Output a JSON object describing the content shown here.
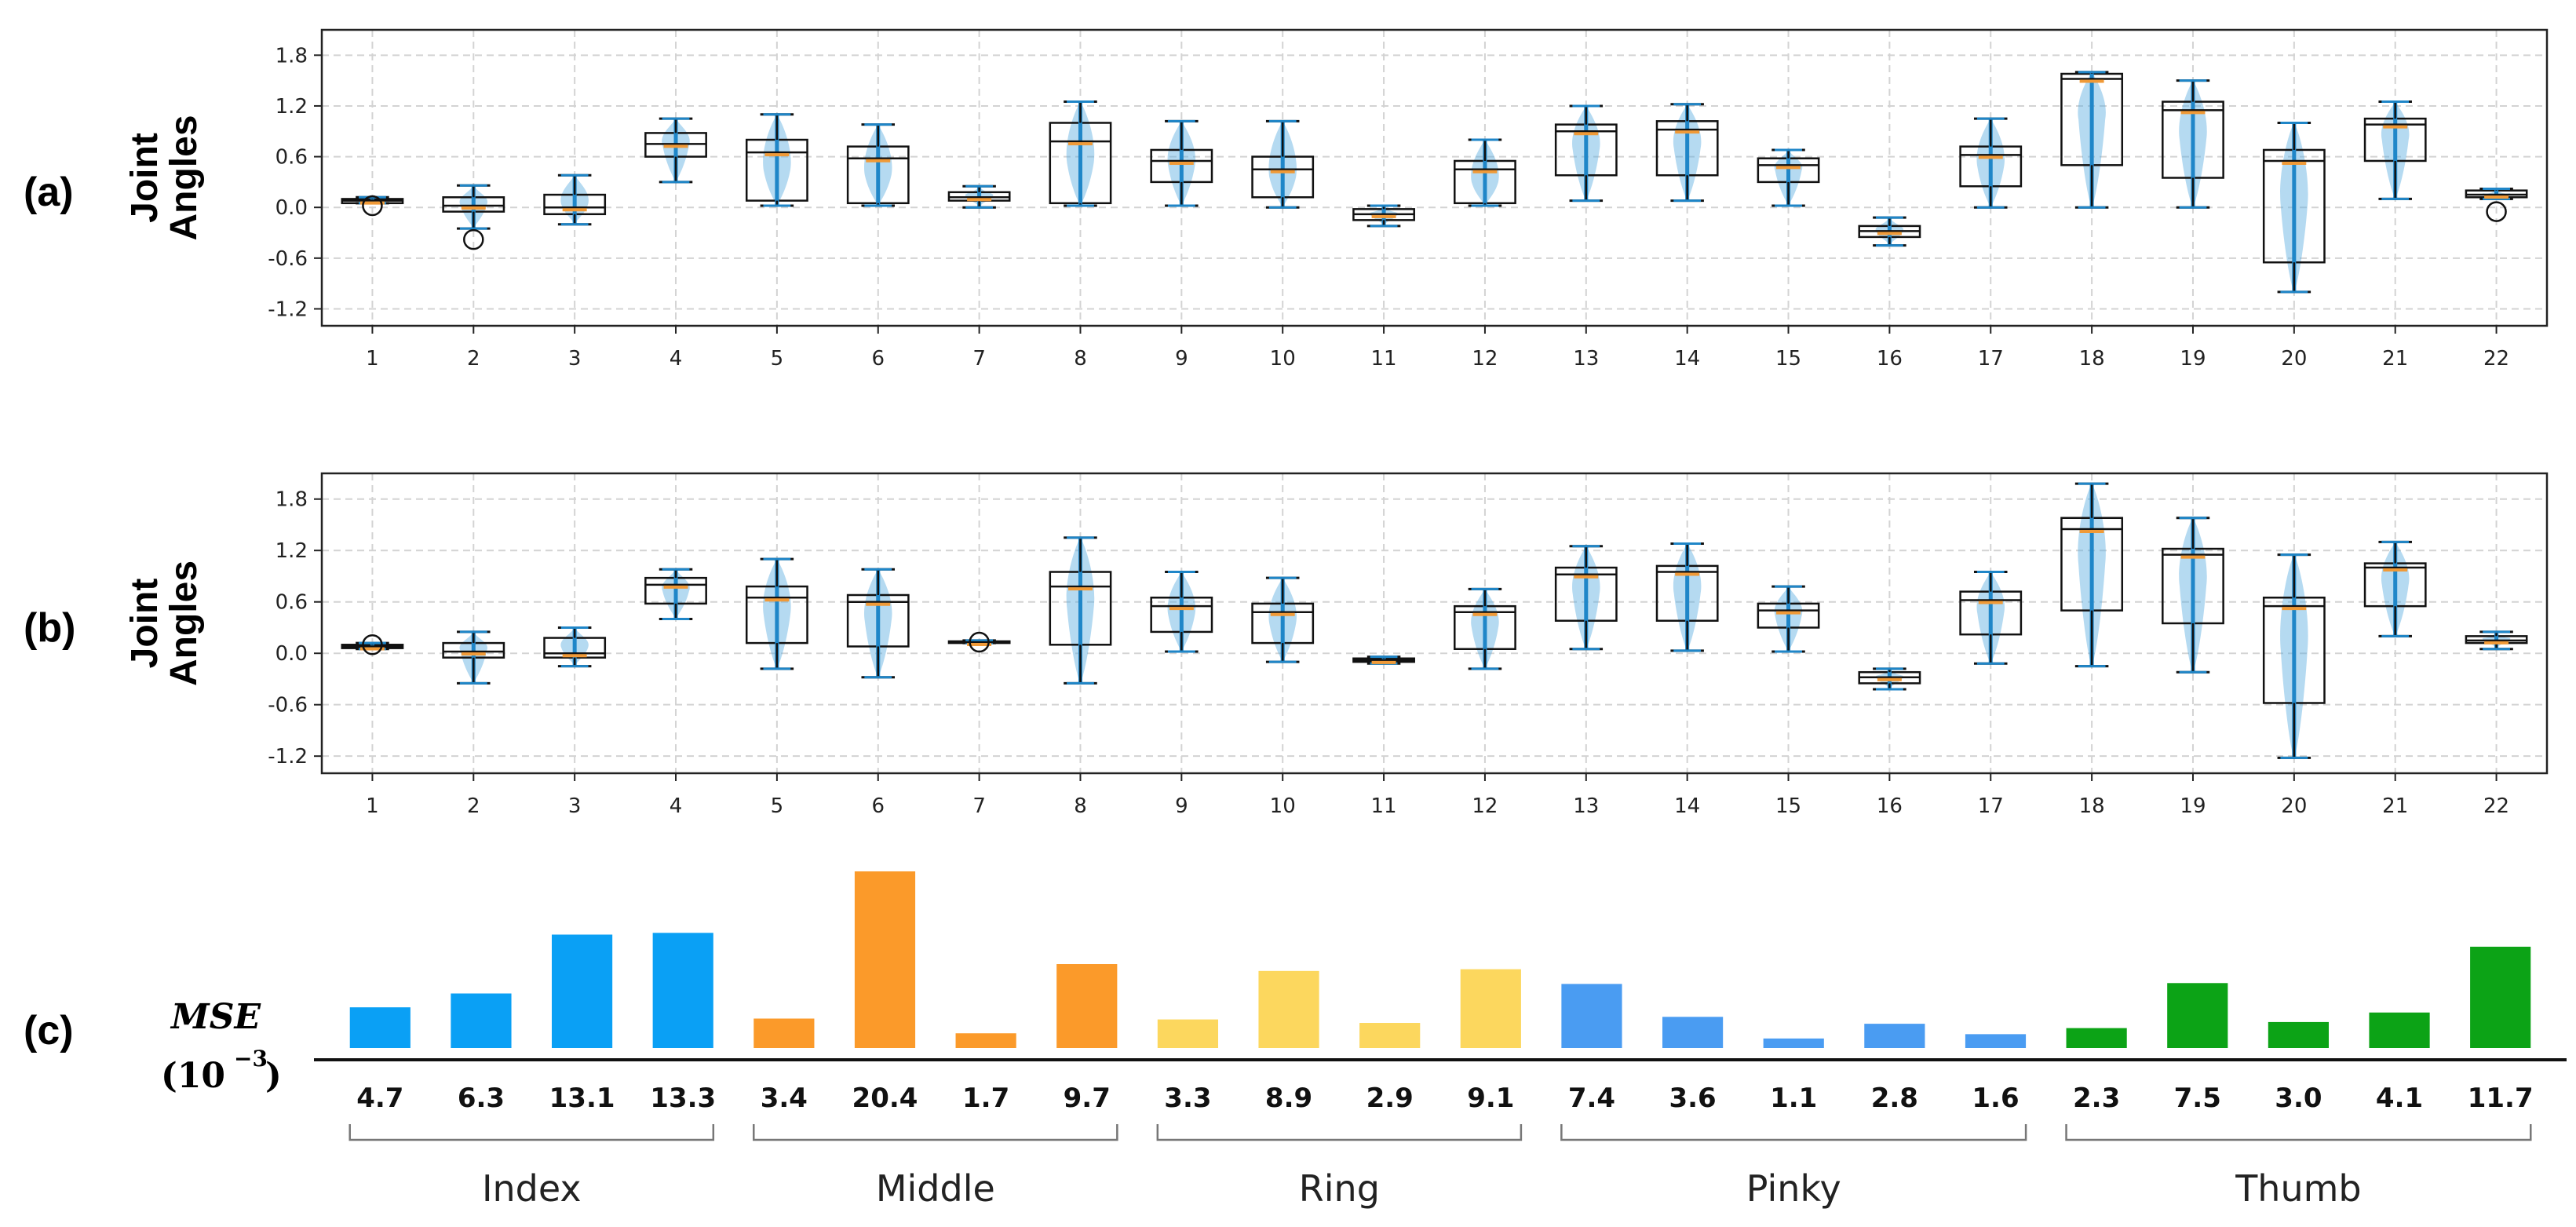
{
  "chart_data": [
    {
      "type": "boxplot",
      "panel_label": "(a)",
      "ylabel": [
        "Joint",
        "Angles"
      ],
      "ylim": [
        -1.4,
        2.1
      ],
      "yticks": [
        "1.8",
        "1.2",
        "0.6",
        "0.0",
        "-0.6",
        "-1.2"
      ],
      "ytick_values": [
        1.8,
        1.2,
        0.6,
        0.0,
        -0.6,
        -1.2
      ],
      "categories": [
        "1",
        "2",
        "3",
        "4",
        "5",
        "6",
        "7",
        "8",
        "9",
        "10",
        "11",
        "12",
        "13",
        "14",
        "15",
        "16",
        "17",
        "18",
        "19",
        "20",
        "21",
        "22"
      ],
      "grid": true,
      "boxes": [
        {
          "min": 0.05,
          "q1": 0.05,
          "median": 0.08,
          "q3": 0.1,
          "max": 0.12,
          "outliers": [
            0.02
          ]
        },
        {
          "min": -0.25,
          "q1": -0.05,
          "median": 0.02,
          "q3": 0.12,
          "max": 0.26,
          "outliers": [
            -0.38
          ]
        },
        {
          "min": -0.2,
          "q1": -0.08,
          "median": 0.0,
          "q3": 0.15,
          "max": 0.38,
          "outliers": []
        },
        {
          "min": 0.3,
          "q1": 0.6,
          "median": 0.75,
          "q3": 0.88,
          "max": 1.05,
          "outliers": []
        },
        {
          "min": 0.02,
          "q1": 0.08,
          "median": 0.65,
          "q3": 0.8,
          "max": 1.1,
          "outliers": []
        },
        {
          "min": 0.02,
          "q1": 0.05,
          "median": 0.58,
          "q3": 0.72,
          "max": 0.98,
          "outliers": []
        },
        {
          "min": 0.0,
          "q1": 0.08,
          "median": 0.12,
          "q3": 0.18,
          "max": 0.25,
          "outliers": []
        },
        {
          "min": 0.02,
          "q1": 0.05,
          "median": 0.78,
          "q3": 1.0,
          "max": 1.25,
          "outliers": []
        },
        {
          "min": 0.02,
          "q1": 0.3,
          "median": 0.55,
          "q3": 0.68,
          "max": 1.02,
          "outliers": []
        },
        {
          "min": 0.0,
          "q1": 0.12,
          "median": 0.45,
          "q3": 0.6,
          "max": 1.02,
          "outliers": []
        },
        {
          "min": -0.22,
          "q1": -0.15,
          "median": -0.08,
          "q3": -0.02,
          "max": 0.02,
          "outliers": []
        },
        {
          "min": 0.02,
          "q1": 0.05,
          "median": 0.45,
          "q3": 0.55,
          "max": 0.8,
          "outliers": []
        },
        {
          "min": 0.08,
          "q1": 0.38,
          "median": 0.9,
          "q3": 0.98,
          "max": 1.2,
          "outliers": []
        },
        {
          "min": 0.08,
          "q1": 0.38,
          "median": 0.92,
          "q3": 1.02,
          "max": 1.22,
          "outliers": []
        },
        {
          "min": 0.02,
          "q1": 0.3,
          "median": 0.5,
          "q3": 0.58,
          "max": 0.68,
          "outliers": []
        },
        {
          "min": -0.45,
          "q1": -0.35,
          "median": -0.28,
          "q3": -0.22,
          "max": -0.12,
          "outliers": []
        },
        {
          "min": 0.0,
          "q1": 0.25,
          "median": 0.62,
          "q3": 0.72,
          "max": 1.05,
          "outliers": []
        },
        {
          "min": 0.0,
          "q1": 0.5,
          "median": 1.52,
          "q3": 1.58,
          "max": 1.6,
          "outliers": []
        },
        {
          "min": 0.0,
          "q1": 0.35,
          "median": 1.15,
          "q3": 1.25,
          "max": 1.5,
          "outliers": []
        },
        {
          "min": -1.0,
          "q1": -0.65,
          "median": 0.55,
          "q3": 0.68,
          "max": 1.0,
          "outliers": []
        },
        {
          "min": 0.1,
          "q1": 0.55,
          "median": 0.98,
          "q3": 1.05,
          "max": 1.25,
          "outliers": []
        },
        {
          "min": 0.1,
          "q1": 0.12,
          "median": 0.15,
          "q3": 0.2,
          "max": 0.22,
          "outliers": [
            -0.05
          ]
        }
      ]
    },
    {
      "type": "boxplot",
      "panel_label": "(b)",
      "ylabel": [
        "Joint",
        "Angles"
      ],
      "ylim": [
        -1.4,
        2.1
      ],
      "yticks": [
        "1.8",
        "1.2",
        "0.6",
        "0.0",
        "-0.6",
        "-1.2"
      ],
      "ytick_values": [
        1.8,
        1.2,
        0.6,
        0.0,
        -0.6,
        -1.2
      ],
      "categories": [
        "1",
        "2",
        "3",
        "4",
        "5",
        "6",
        "7",
        "8",
        "9",
        "10",
        "11",
        "12",
        "13",
        "14",
        "15",
        "16",
        "17",
        "18",
        "19",
        "20",
        "21",
        "22"
      ],
      "grid": true,
      "boxes": [
        {
          "min": 0.05,
          "q1": 0.06,
          "median": 0.08,
          "q3": 0.1,
          "max": 0.12,
          "outliers": [
            0.1
          ]
        },
        {
          "min": -0.35,
          "q1": -0.05,
          "median": 0.02,
          "q3": 0.12,
          "max": 0.25,
          "outliers": []
        },
        {
          "min": -0.15,
          "q1": -0.05,
          "median": 0.0,
          "q3": 0.18,
          "max": 0.3,
          "outliers": []
        },
        {
          "min": 0.4,
          "q1": 0.58,
          "median": 0.8,
          "q3": 0.88,
          "max": 0.98,
          "outliers": []
        },
        {
          "min": -0.18,
          "q1": 0.12,
          "median": 0.65,
          "q3": 0.78,
          "max": 1.1,
          "outliers": []
        },
        {
          "min": -0.28,
          "q1": 0.08,
          "median": 0.6,
          "q3": 0.68,
          "max": 0.98,
          "outliers": []
        },
        {
          "min": 0.12,
          "q1": 0.12,
          "median": 0.13,
          "q3": 0.14,
          "max": 0.15,
          "outliers": [
            0.13
          ]
        },
        {
          "min": -0.35,
          "q1": 0.1,
          "median": 0.78,
          "q3": 0.95,
          "max": 1.35,
          "outliers": []
        },
        {
          "min": 0.02,
          "q1": 0.25,
          "median": 0.55,
          "q3": 0.65,
          "max": 0.95,
          "outliers": []
        },
        {
          "min": -0.1,
          "q1": 0.12,
          "median": 0.48,
          "q3": 0.58,
          "max": 0.88,
          "outliers": []
        },
        {
          "min": -0.12,
          "q1": -0.1,
          "median": -0.08,
          "q3": -0.06,
          "max": -0.04,
          "outliers": []
        },
        {
          "min": -0.18,
          "q1": 0.05,
          "median": 0.48,
          "q3": 0.55,
          "max": 0.75,
          "outliers": []
        },
        {
          "min": 0.05,
          "q1": 0.38,
          "median": 0.92,
          "q3": 1.0,
          "max": 1.25,
          "outliers": []
        },
        {
          "min": 0.03,
          "q1": 0.38,
          "median": 0.95,
          "q3": 1.02,
          "max": 1.28,
          "outliers": []
        },
        {
          "min": 0.02,
          "q1": 0.3,
          "median": 0.5,
          "q3": 0.58,
          "max": 0.78,
          "outliers": []
        },
        {
          "min": -0.42,
          "q1": -0.35,
          "median": -0.28,
          "q3": -0.22,
          "max": -0.18,
          "outliers": []
        },
        {
          "min": -0.12,
          "q1": 0.22,
          "median": 0.62,
          "q3": 0.72,
          "max": 0.95,
          "outliers": []
        },
        {
          "min": -0.15,
          "q1": 0.5,
          "median": 1.45,
          "q3": 1.58,
          "max": 1.98,
          "outliers": []
        },
        {
          "min": -0.22,
          "q1": 0.35,
          "median": 1.15,
          "q3": 1.22,
          "max": 1.58,
          "outliers": []
        },
        {
          "min": -1.22,
          "q1": -0.58,
          "median": 0.55,
          "q3": 0.65,
          "max": 1.15,
          "outliers": []
        },
        {
          "min": 0.2,
          "q1": 0.55,
          "median": 1.0,
          "q3": 1.05,
          "max": 1.3,
          "outliers": []
        },
        {
          "min": 0.05,
          "q1": 0.12,
          "median": 0.15,
          "q3": 0.2,
          "max": 0.25,
          "outliers": []
        }
      ]
    },
    {
      "type": "bar",
      "panel_label": "(c)",
      "ylabel": "MSE",
      "ylabel_unit": "(10",
      "ylabel_exponent": "−3",
      "ylabel_unit_close": ")",
      "values": [
        4.7,
        6.3,
        13.1,
        13.3,
        3.4,
        20.4,
        1.7,
        9.7,
        3.3,
        8.9,
        2.9,
        9.1,
        7.4,
        3.6,
        1.1,
        2.8,
        1.6,
        2.3,
        7.5,
        3.0,
        4.1,
        11.7
      ],
      "labels": [
        "4.7",
        "6.3",
        "13.1",
        "13.3",
        "3.4",
        "20.4",
        "1.7",
        "9.7",
        "3.3",
        "8.9",
        "2.9",
        "9.1",
        "7.4",
        "3.6",
        "1.1",
        "2.8",
        "1.6",
        "2.3",
        "7.5",
        "3.0",
        "4.1",
        "11.7"
      ],
      "groups": [
        {
          "name": "Index",
          "count": 4,
          "color": "#0aa0f5"
        },
        {
          "name": "Middle",
          "count": 4,
          "color": "#fb9a2a"
        },
        {
          "name": "Ring",
          "count": 4,
          "color": "#fcd75e"
        },
        {
          "name": "Pinky",
          "count": 5,
          "color": "#4a9cf2"
        },
        {
          "name": "Thumb",
          "count": 5,
          "color": "#0ca316"
        }
      ]
    }
  ]
}
